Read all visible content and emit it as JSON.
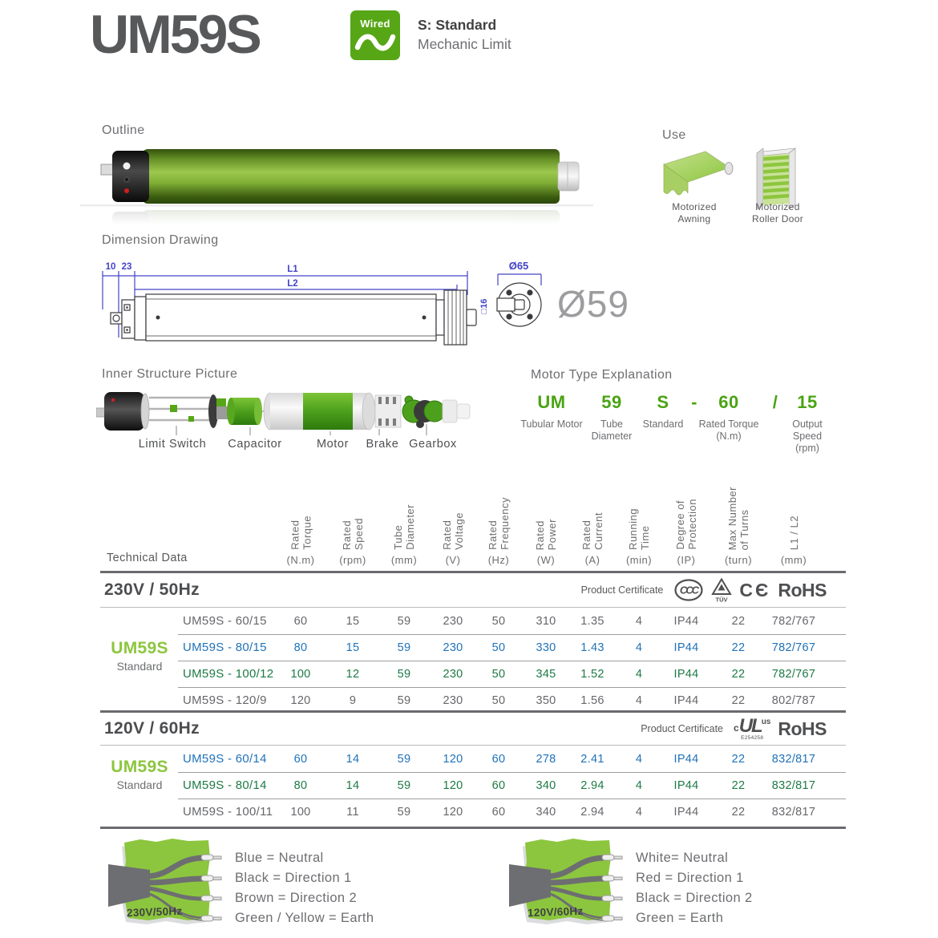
{
  "header": {
    "title": "UM59S",
    "badge_label": "Wired",
    "subtitle_line1": "S: Standard",
    "subtitle_line2": "Mechanic Limit"
  },
  "outline": {
    "heading": "Outline"
  },
  "use": {
    "heading": "Use",
    "items": [
      {
        "label": "Motorized Awning"
      },
      {
        "label": "Motorized Roller Door"
      }
    ]
  },
  "dimension": {
    "heading": "Dimension Drawing",
    "labels": {
      "left1": "10",
      "left2": "23",
      "l1": "L1",
      "l2": "L2",
      "square": "□16",
      "flange": "Ø65",
      "diameter": "Ø59"
    }
  },
  "inner": {
    "heading": "Inner Structure Picture",
    "labels": [
      "Limit Switch",
      "Capacitor",
      "Motor",
      "Brake",
      "Gearbox"
    ]
  },
  "motor_type": {
    "heading": "Motor Type Explanation",
    "parts": [
      {
        "code": "UM",
        "label": "Tubular Motor"
      },
      {
        "code": "59",
        "label": "Tube\nDiameter"
      },
      {
        "code": "S",
        "label": "Standard"
      },
      {
        "code": "-",
        "label": ""
      },
      {
        "code": "60",
        "label": "Rated Torque\n(N.m)"
      },
      {
        "code": "/",
        "label": ""
      },
      {
        "code": "15",
        "label": "Output Speed\n(rpm)"
      }
    ]
  },
  "table": {
    "title": "Technical Data",
    "columns": [
      {
        "name": "Rated\nTorque",
        "unit": "(N.m)"
      },
      {
        "name": "Rated\nSpeed",
        "unit": "(rpm)"
      },
      {
        "name": "Tube\nDiameter",
        "unit": "(mm)"
      },
      {
        "name": "Rated\nVoltage",
        "unit": "(V)"
      },
      {
        "name": "Rated\nFrequency",
        "unit": "(Hz)"
      },
      {
        "name": "Rated\nPower",
        "unit": "(W)"
      },
      {
        "name": "Rated\nCurrent",
        "unit": "(A)"
      },
      {
        "name": "Running\nTime",
        "unit": "(min)"
      },
      {
        "name": "Degree of\nProtection",
        "unit": "(IP)"
      },
      {
        "name": "Max Number\nof Turns",
        "unit": "(turn)"
      },
      {
        "name": "L1 / L2",
        "unit": "(mm)"
      }
    ],
    "sections": [
      {
        "voltage_title": "230V / 50Hz",
        "certificate_label": "Product Certificate",
        "certificates": [
          {
            "type": "ccc",
            "text": "CCC"
          },
          {
            "type": "tuv",
            "text": "TÜV"
          },
          {
            "type": "ce",
            "text": "CЄ"
          },
          {
            "type": "rohs",
            "text": "RoHS"
          }
        ],
        "group": {
          "name": "UM59S",
          "sub": "Standard"
        },
        "rows": [
          {
            "model": "UM59S - 60/15",
            "color": "gray",
            "values": [
              "60",
              "15",
              "59",
              "230",
              "50",
              "310",
              "1.35",
              "4",
              "IP44",
              "22",
              "782/767"
            ]
          },
          {
            "model": "UM59S - 80/15",
            "color": "blue",
            "values": [
              "80",
              "15",
              "59",
              "230",
              "50",
              "330",
              "1.43",
              "4",
              "IP44",
              "22",
              "782/767"
            ]
          },
          {
            "model": "UM59S - 100/12",
            "color": "green",
            "values": [
              "100",
              "12",
              "59",
              "230",
              "50",
              "345",
              "1.52",
              "4",
              "IP44",
              "22",
              "782/767"
            ]
          },
          {
            "model": "UM59S - 120/9",
            "color": "gray",
            "values": [
              "120",
              "9",
              "59",
              "230",
              "50",
              "350",
              "1.56",
              "4",
              "IP44",
              "22",
              "802/787"
            ]
          }
        ]
      },
      {
        "voltage_title": "120V / 60Hz",
        "certificate_label": "Product Certificate",
        "certificates": [
          {
            "type": "cul",
            "prefix": "c",
            "text": "UL",
            "suffix": "us",
            "number": "E254258"
          },
          {
            "type": "rohs",
            "text": "RoHS"
          }
        ],
        "group": {
          "name": "UM59S",
          "sub": "Standard"
        },
        "rows": [
          {
            "model": "UM59S - 60/14",
            "color": "blue",
            "values": [
              "60",
              "14",
              "59",
              "120",
              "60",
              "278",
              "2.41",
              "4",
              "IP44",
              "22",
              "832/817"
            ]
          },
          {
            "model": "UM59S - 80/14",
            "color": "green",
            "values": [
              "80",
              "14",
              "59",
              "120",
              "60",
              "340",
              "2.94",
              "4",
              "IP44",
              "22",
              "832/817"
            ]
          },
          {
            "model": "UM59S - 100/11",
            "color": "gray",
            "values": [
              "100",
              "11",
              "59",
              "120",
              "60",
              "340",
              "2.94",
              "4",
              "IP44",
              "22",
              "832/817"
            ]
          }
        ]
      }
    ]
  },
  "wiring": [
    {
      "badge": "230V/50Hz",
      "lines": [
        "Blue = Neutral",
        "Black = Direction 1",
        "Brown = Direction 2",
        "Green / Yellow = Earth"
      ]
    },
    {
      "badge": "120V/60Hz",
      "lines": [
        "White= Neutral",
        "Red = Direction 1",
        "Black = Direction 2",
        "Green = Earth"
      ]
    }
  ],
  "colors": {
    "accent_green": "#56a616",
    "light_green": "#8cc63e",
    "row_blue": "#1f72b8",
    "row_green": "#1d7a45",
    "row_gray": "#66676a",
    "dim_blue": "#4343c6"
  }
}
